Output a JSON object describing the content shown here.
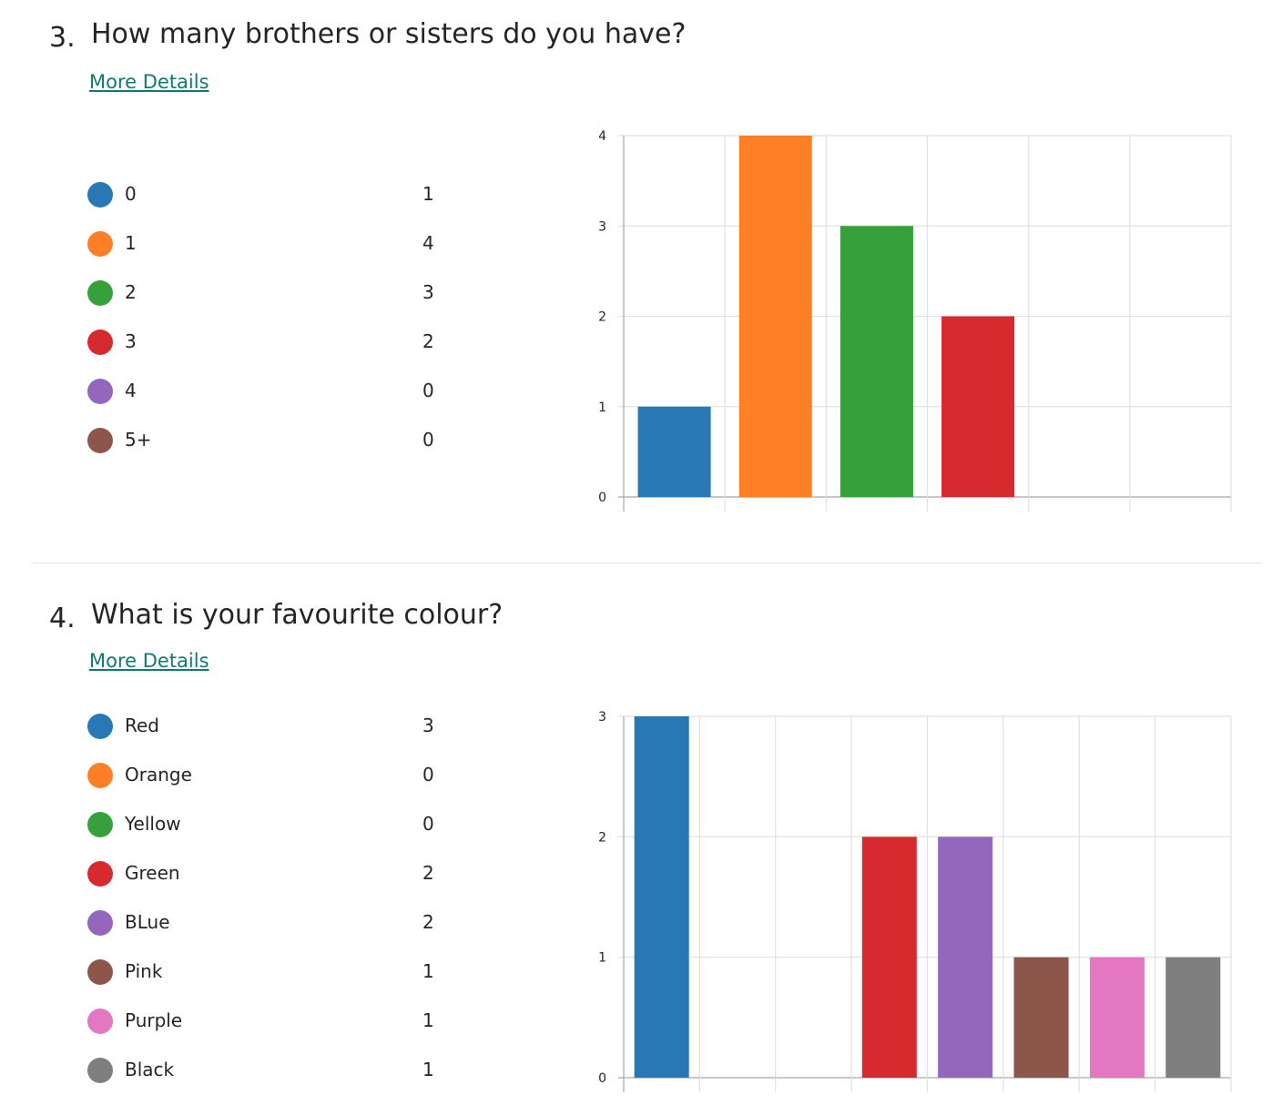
{
  "questions": [
    {
      "number": "3.",
      "title": "How many brothers or sisters do you have?",
      "more_details": "More Details",
      "responses": [
        {
          "label": "0",
          "count": "1",
          "color": "#2878b5"
        },
        {
          "label": "1",
          "count": "4",
          "color": "#ff7f27"
        },
        {
          "label": "2",
          "count": "3",
          "color": "#36a13a"
        },
        {
          "label": "3",
          "count": "2",
          "color": "#d62a2f"
        },
        {
          "label": "4",
          "count": "0",
          "color": "#9467bd"
        },
        {
          "label": "5+",
          "count": "0",
          "color": "#8c564b"
        }
      ]
    },
    {
      "number": "4.",
      "title": "What is your favourite colour?",
      "more_details": "More Details",
      "responses": [
        {
          "label": "Red",
          "count": "3",
          "color": "#2878b5"
        },
        {
          "label": "Orange",
          "count": "0",
          "color": "#ff7f27"
        },
        {
          "label": "Yellow",
          "count": "0",
          "color": "#36a13a"
        },
        {
          "label": "Green",
          "count": "2",
          "color": "#d62a2f"
        },
        {
          "label": "BLue",
          "count": "2",
          "color": "#9467bd"
        },
        {
          "label": "Pink",
          "count": "1",
          "color": "#8c564b"
        },
        {
          "label": "Purple",
          "count": "1",
          "color": "#e377c2"
        },
        {
          "label": "Black",
          "count": "1",
          "color": "#7f7f7f"
        }
      ]
    }
  ],
  "chart_data": [
    {
      "type": "bar",
      "categories": [
        "0",
        "1",
        "2",
        "3",
        "4",
        "5+"
      ],
      "values": [
        1,
        4,
        3,
        2,
        0,
        0
      ],
      "colors": [
        "#2878b5",
        "#ff7f27",
        "#36a13a",
        "#d62a2f",
        "#9467bd",
        "#8c564b"
      ],
      "ylim": [
        0,
        4
      ],
      "yticks": [
        "0",
        "1",
        "2",
        "3",
        "4"
      ],
      "grid": true,
      "xlabel": "",
      "ylabel": ""
    },
    {
      "type": "bar",
      "categories": [
        "Red",
        "Orange",
        "Yellow",
        "Green",
        "BLue",
        "Pink",
        "Purple",
        "Black"
      ],
      "values": [
        3,
        0,
        0,
        2,
        2,
        1,
        1,
        1
      ],
      "colors": [
        "#2878b5",
        "#ff7f27",
        "#36a13a",
        "#d62a2f",
        "#9467bd",
        "#8c564b",
        "#e377c2",
        "#7f7f7f"
      ],
      "ylim": [
        0,
        3
      ],
      "yticks": [
        "0",
        "1",
        "2",
        "3"
      ],
      "grid": true,
      "xlabel": "",
      "ylabel": ""
    }
  ]
}
